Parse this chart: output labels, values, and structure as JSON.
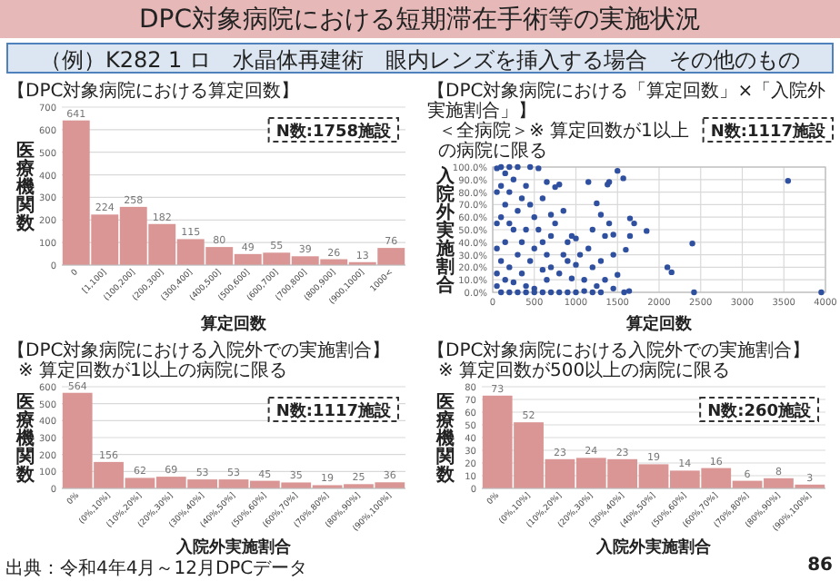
{
  "chart_data": [
    {
      "type": "other",
      "title": "DPC対象病院における短期滞在手術等の実施状況",
      "subtitle": "（例）K282 1 ロ　水晶体再建術　眼内レンズを挿入する場合　その他のもの",
      "annotations": [
        "出典：令和4年4月～12月DPCデータ",
        "86"
      ]
    },
    {
      "type": "bar",
      "title": "【DPC対象病院における算定回数】",
      "xlabel": "算定回数",
      "ylabel": "医療機関数",
      "categories": [
        "0",
        "[1,100]",
        "(100,200]",
        "(200,300]",
        "(300,400]",
        "(400,500]",
        "(500,600]",
        "(600,700]",
        "(700,800]",
        "(800,900]",
        "(900,1000]",
        "1000<"
      ],
      "values": [
        641,
        224,
        258,
        182,
        115,
        80,
        49,
        55,
        39,
        26,
        13,
        76
      ],
      "color": "#d99694",
      "ylim": [
        0,
        700
      ],
      "yticks": [
        0,
        100,
        200,
        300,
        400,
        500,
        600,
        700
      ],
      "grid": "y",
      "data_labels": true,
      "annotations": [
        "N数:1758施設"
      ]
    },
    {
      "type": "scatter",
      "title": "【DPC対象病院における「算定回数」×「入院外実施割合」】",
      "subtitle": "＜全病院＞※ 算定回数が1以上の病院に限る",
      "xlabel": "算定回数",
      "ylabel": "入院外実施割合",
      "color": "#2f4f9f",
      "marker": "circle",
      "grid": true,
      "xlim": [
        0,
        4000
      ],
      "xticks": [
        0,
        500,
        1000,
        1500,
        2000,
        2500,
        3000,
        3500,
        4000
      ],
      "ylim": [
        0,
        100
      ],
      "yticks": [
        {
          "value": 0,
          "label": "0.0%"
        },
        {
          "value": 10,
          "label": "10.0%"
        },
        {
          "value": 20,
          "label": "20.0%"
        },
        {
          "value": 30,
          "label": "30.0%"
        },
        {
          "value": 40,
          "label": "40.0%"
        },
        {
          "value": 50,
          "label": "50.0%"
        },
        {
          "value": 60,
          "label": "60.0%"
        },
        {
          "value": 70,
          "label": "70.0%"
        },
        {
          "value": 80,
          "label": "80.0%"
        },
        {
          "value": 90,
          "label": "90.0%"
        },
        {
          "value": 100,
          "label": "100.0%"
        }
      ],
      "annotations": [
        "N数:1117施設"
      ],
      "x": [
        3550,
        3950,
        2400,
        2100,
        2150,
        2420,
        1850,
        1650,
        1700,
        1600,
        1650,
        1500,
        1570,
        1580,
        1640,
        1400,
        1380,
        1150,
        1250,
        1300,
        1200,
        1350,
        1450,
        1400,
        1300,
        1450,
        1500,
        1200,
        1250,
        1100,
        1300,
        1450,
        1350,
        1000,
        1050,
        1000,
        950,
        900,
        850,
        800,
        750,
        750,
        700,
        650,
        600,
        550,
        450,
        300,
        200,
        100,
        50,
        150,
        250,
        100,
        50,
        200,
        350,
        400,
        450,
        500,
        300,
        150,
        100,
        50,
        200,
        250,
        400,
        350,
        150,
        50,
        300,
        450,
        100,
        200,
        50,
        350,
        150,
        250,
        400,
        500,
        50,
        100,
        200,
        300,
        400,
        500,
        600,
        700,
        800,
        900,
        1000,
        1200,
        650,
        700,
        800,
        850,
        600,
        550,
        500,
        600,
        650,
        700,
        900,
        950,
        1100,
        1150
      ],
      "values": [
        89,
        0,
        39,
        20,
        16,
        0,
        49,
        59,
        55,
        34,
        45,
        97,
        91,
        0,
        1,
        88,
        86,
        88,
        71,
        62,
        50,
        45,
        46,
        55,
        25,
        30,
        14,
        20,
        5,
        1,
        0,
        3,
        10,
        43,
        30,
        22,
        11,
        40,
        65,
        86,
        84,
        55,
        45,
        30,
        18,
        99,
        100,
        100,
        100,
        100,
        99,
        95,
        90,
        85,
        80,
        80,
        75,
        85,
        70,
        60,
        65,
        70,
        60,
        55,
        55,
        50,
        50,
        40,
        40,
        35,
        30,
        25,
        25,
        20,
        15,
        15,
        10,
        8,
        5,
        3,
        5,
        0,
        0,
        0,
        0,
        0,
        0,
        0,
        0,
        0,
        0,
        0,
        10,
        20,
        15,
        30,
        40,
        50,
        35,
        75,
        88,
        62,
        25,
        45,
        10,
        35
      ]
    },
    {
      "type": "bar",
      "title": "【DPC対象病院における入院外での実施割合】",
      "subtitle": "※ 算定回数が1以上の病院に限る",
      "xlabel": "入院外実施割合",
      "ylabel": "医療機関数",
      "categories": [
        "0%",
        "(0%,10%]",
        "(10%,20%]",
        "(20%,30%]",
        "(30%,40%]",
        "(40%,50%]",
        "(50%,60%]",
        "(60%,70%]",
        "(70%,80%]",
        "(80%,90%]",
        "(90%,100%]"
      ],
      "values": [
        564,
        156,
        62,
        69,
        53,
        53,
        45,
        35,
        19,
        25,
        36
      ],
      "color": "#d99694",
      "ylim": [
        0,
        600
      ],
      "yticks": [
        0,
        100,
        200,
        300,
        400,
        500,
        600
      ],
      "grid": "y",
      "data_labels": true,
      "annotations": [
        "N数:1117施設"
      ]
    },
    {
      "type": "bar",
      "title": "【DPC対象病院における入院外での実施割合】",
      "subtitle": "※ 算定回数が500以上の病院に限る",
      "xlabel": "入院外実施割合",
      "ylabel": "医療機関数",
      "categories": [
        "0%",
        "(0%,10%]",
        "(10%,20%]",
        "(20%,30%]",
        "(30%,40%]",
        "(40%,50%]",
        "(50%,60%]",
        "(60%,70%]",
        "(70%,80%]",
        "(80%,90%]",
        "(90%,100%]"
      ],
      "values": [
        73,
        52,
        23,
        24,
        23,
        19,
        14,
        16,
        6,
        8,
        3
      ],
      "color": "#d99694",
      "ylim": [
        0,
        80
      ],
      "yticks": [
        0,
        10,
        20,
        30,
        40,
        50,
        60,
        70,
        80
      ],
      "grid": "y",
      "data_labels": true,
      "annotations": [
        "N数:260施設"
      ]
    }
  ]
}
